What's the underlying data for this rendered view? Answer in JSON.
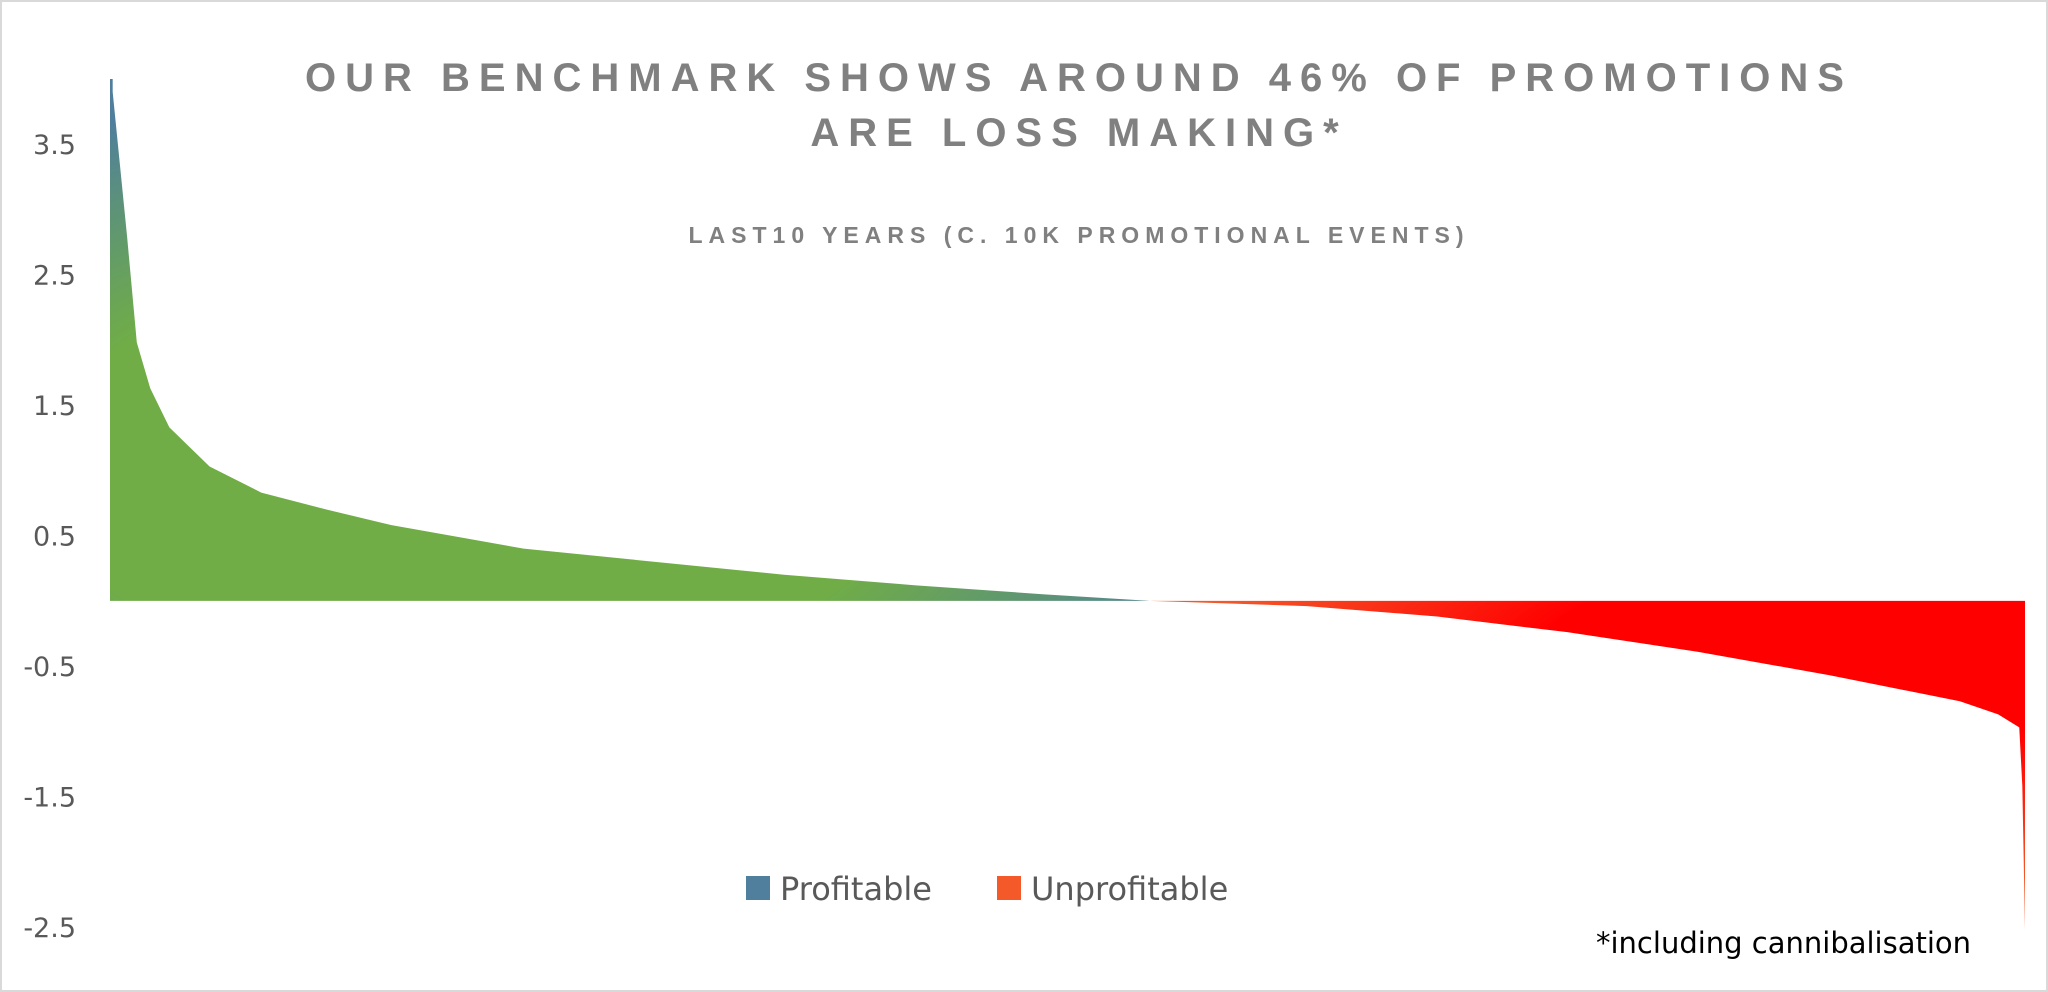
{
  "chart_data": {
    "type": "area",
    "title_lines": [
      "OUR BENCHMARK SHOWS AROUND 46% OF PROMOTIONS",
      "ARE LOSS MAKING*"
    ],
    "subtitle": "LAST10 YEARS (C. 10K PROMOTIONAL EVENTS)",
    "footnote": "*including cannibalisation",
    "xlabel": "",
    "ylabel": "",
    "ylim": [
      -2.5,
      4.0
    ],
    "y_ticks": [
      "3.5",
      "2.5",
      "1.5",
      "0.5",
      "-0.5",
      "-1.5",
      "-2.5"
    ],
    "y_tick_values": [
      3.5,
      2.5,
      1.5,
      0.5,
      -0.5,
      -1.5,
      -2.5
    ],
    "grid": false,
    "legend_position": "bottom",
    "legend": [
      {
        "name": "Profitable",
        "color": "#4F7F9C"
      },
      {
        "name": "Unprofitable",
        "color": "#F4592A"
      }
    ],
    "colors": {
      "profitable_center": "#70AD47",
      "profitable_edge": "#4F7F9C",
      "unprofitable_center": "#FF0000",
      "unprofitable_edge": "#F4592A"
    },
    "points_percentile_value": [
      [
        0,
        4.0
      ],
      [
        0.14,
        3.9
      ],
      [
        0.9,
        2.78
      ],
      [
        1.4,
        1.98
      ],
      [
        2.1,
        1.63
      ],
      [
        3.1,
        1.33
      ],
      [
        5.2,
        1.03
      ],
      [
        7.9,
        0.83
      ],
      [
        11.3,
        0.7
      ],
      [
        14.7,
        0.58
      ],
      [
        21.6,
        0.4
      ],
      [
        28.4,
        0.3
      ],
      [
        35.2,
        0.2
      ],
      [
        42.0,
        0.12
      ],
      [
        48.8,
        0.05
      ],
      [
        54.3,
        0.0
      ],
      [
        62.5,
        -0.04
      ],
      [
        69.3,
        -0.12
      ],
      [
        76.1,
        -0.24
      ],
      [
        82.9,
        -0.39
      ],
      [
        89.8,
        -0.57
      ],
      [
        96.6,
        -0.77
      ],
      [
        98.6,
        -0.87
      ],
      [
        99.7,
        -0.97
      ],
      [
        99.86,
        -1.42
      ],
      [
        100,
        -2.52
      ]
    ]
  }
}
